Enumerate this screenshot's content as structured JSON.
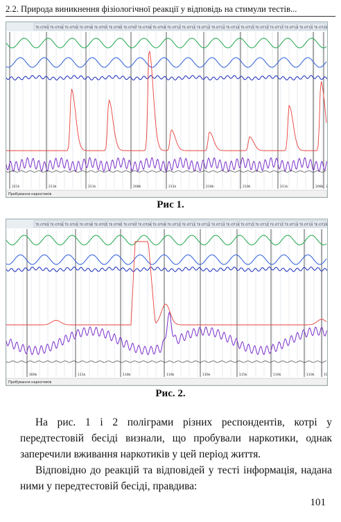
{
  "header": {
    "running_title": "2.2. Природа виникнення фізіологічної реакції у відповідь на стимули тестів..."
  },
  "figure1": {
    "caption": "Рис 1.",
    "status_label": "Пробування наркотиків",
    "question_tags": [
      "TE:OT01",
      "TE:OT02",
      "TE:OT03",
      "TE:OT04",
      "TE:OT05",
      "TE:OT06",
      "TE:OT07",
      "TE:OT08",
      "TE:OT09",
      "TE:OT10",
      "TE:OT11",
      "TE:OT12",
      "TE:OT13",
      "TE:OT14",
      "TE:OT15",
      "TE:OT16",
      "TE:OT17",
      "TE:OT18",
      "TE:OT19",
      "TE:OT20"
    ],
    "timestamps": [
      "221k",
      "213k",
      "211k",
      "208k",
      "211k",
      "218k",
      "210k",
      "211k",
      "208k",
      "206k"
    ]
  },
  "figure2": {
    "caption": "Рис. 2.",
    "status_label": "Пробування наркотиків",
    "question_tags": [
      "TE:OT01",
      "TE:OT02",
      "TE:OT03",
      "TE:OT04",
      "TE:OT05",
      "TE:OT06",
      "TE:OT07",
      "TE:OT08",
      "TE:OT09",
      "TE:OT10",
      "TE:OT11",
      "TE:OT12",
      "TE:OT13",
      "TE:OT14",
      "TE:OT15",
      "TE:OT16",
      "TE:OT17",
      "TE:OT18",
      "TE:OT19",
      "TE:OT20"
    ],
    "timestamps": [
      "166k",
      "111k",
      "118k",
      "116k",
      "116k",
      "115k",
      "116k",
      "110k",
      "108k"
    ]
  },
  "body": {
    "paragraph1": "На рис. 1 і 2 поліграми різних респондентів, котрі у передтестовій бесіді визнали, що пробували наркотики, однак заперечили вживання наркотиків у цей період життя.",
    "paragraph2": "Відповідно до реакцій та відповідей у тесті інформація, надана ними у передтестовій бесіді, правдива:"
  },
  "page_number": "101",
  "colors": {
    "green": "#1fa64a",
    "blue": "#2a5bd8",
    "navy": "#1b2bb8",
    "red": "#e8403a",
    "violet": "#7b2fc9",
    "black": "#222222",
    "grid": "#c9d6e0"
  }
}
